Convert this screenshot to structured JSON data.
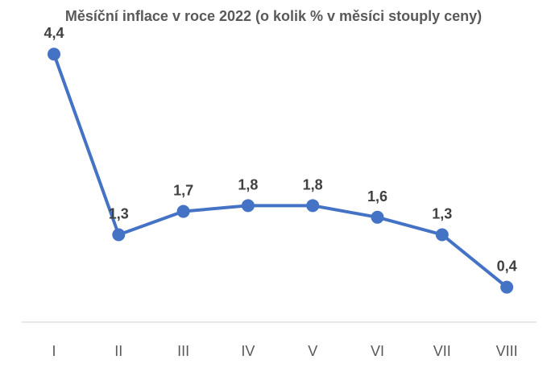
{
  "chart_data": {
    "type": "line",
    "title": "Měsíční inflace v roce 2022 (o kolik % v měsíci stouply ceny)",
    "categories": [
      "I",
      "II",
      "III",
      "IV",
      "V",
      "VI",
      "VII",
      "VIII"
    ],
    "values": [
      4.4,
      1.3,
      1.7,
      1.8,
      1.8,
      1.6,
      1.3,
      0.4
    ],
    "data_labels": [
      "4,4",
      "1,3",
      "1,7",
      "1,8",
      "1,8",
      "1,6",
      "1,3",
      "0,4"
    ],
    "xlabel": "",
    "ylabel": "",
    "ylim": [
      -0.2,
      4.5
    ],
    "grid": false,
    "legend": "none",
    "y_axis_visible": false,
    "colors": {
      "line": "#4472C4",
      "marker": "#4472C4",
      "axis": "#d9d9d9",
      "tick_text": "#595959",
      "label_text": "#404040",
      "title_text": "#595959"
    }
  }
}
